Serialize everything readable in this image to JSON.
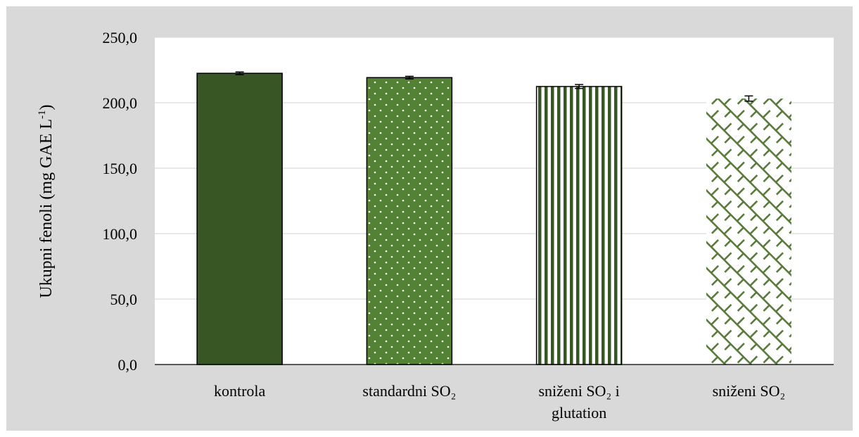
{
  "chart_data": {
    "type": "bar",
    "categories": [
      [
        "kontrola"
      ],
      [
        "standardni SO₂"
      ],
      [
        "sniženi SO₂ i",
        "glutation"
      ],
      [
        "sniženi SO₂"
      ]
    ],
    "values": [
      222.5,
      219.2,
      212.4,
      203.2
    ],
    "errors": [
      1.0,
      1.0,
      1.5,
      2.0
    ],
    "fill_patterns": [
      "solid",
      "dotted",
      "vertical-stripes",
      "diagonal-hatch"
    ],
    "colors": {
      "dark_green": "#375623",
      "medium_green": "#548235",
      "hatch_green": "#5a7a3c",
      "grid": "#d9d9d9",
      "frame": "#d9d9d9"
    },
    "ylim": [
      0,
      250
    ],
    "yticks": [
      "0,0",
      "50,0",
      "100,0",
      "150,0",
      "200,0",
      "250,0"
    ],
    "ylabel_main": "Ukupni  fenoli (mg GAE L",
    "ylabel_sup": "-1",
    "ylabel_tail": ")",
    "grid": true,
    "legend": "none"
  }
}
